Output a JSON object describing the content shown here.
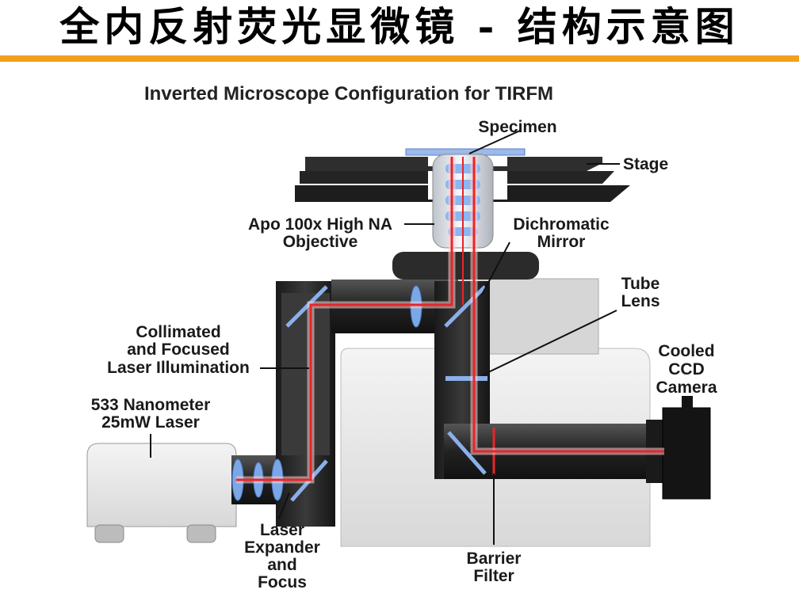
{
  "slide_title": "全内反射荧光显微镜 - 结构示意图",
  "colors": {
    "title_rule": "#f0a01e",
    "laser_beam": "#e8252a",
    "lens": "#7ba7e6",
    "metal_dark": "#2a2a2a",
    "housing_light": "#e4e4e4"
  },
  "diagram": {
    "title": "Inverted Microscope Configuration for TIRFM",
    "labels": {
      "specimen": "Specimen",
      "stage": "Stage",
      "objective_1": "Apo 100x High NA",
      "objective_2": "Objective",
      "dichromatic_1": "Dichromatic",
      "dichromatic_2": "Mirror",
      "tube_1": "Tube",
      "tube_2": "Lens",
      "collimated_1": "Collimated",
      "collimated_2": "and Focused",
      "collimated_3": "Laser Illumination",
      "laser_1": "533 Nanometer",
      "laser_2": "25mW Laser",
      "camera_1": "Cooled",
      "camera_2": "CCD",
      "camera_3": "Camera",
      "expander_1": "Laser",
      "expander_2": "Expander",
      "expander_3": "and",
      "expander_4": "Focus",
      "barrier_1": "Barrier",
      "barrier_2": "Filter"
    }
  }
}
